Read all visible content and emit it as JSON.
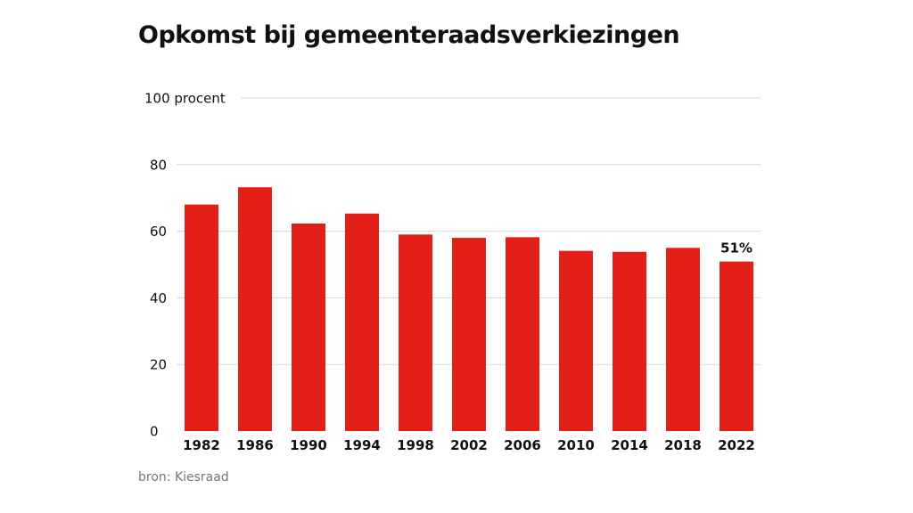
{
  "chart_data": {
    "type": "bar",
    "title": "Opkomst bij gemeenteraadsverkiezingen",
    "xlabel": "",
    "ylabel": "procent",
    "ylim": [
      0,
      100
    ],
    "yticks": [
      0,
      20,
      40,
      60,
      80,
      100
    ],
    "ytick_labels": [
      "0",
      "20",
      "40",
      "60",
      "80",
      "100 procent"
    ],
    "grid": true,
    "categories": [
      "1982",
      "1986",
      "1990",
      "1994",
      "1998",
      "2002",
      "2006",
      "2010",
      "2014",
      "2018",
      "2022"
    ],
    "values": [
      68.0,
      73.2,
      62.3,
      65.3,
      59.0,
      58.0,
      58.2,
      54.1,
      53.8,
      55.0,
      50.9
    ],
    "annotations": [
      {
        "category": "2022",
        "text": "51%"
      }
    ],
    "source": "bron: Kiesraad",
    "colors": {
      "bar": "#e31e16",
      "grid": "#d8d8d8",
      "text": "#111111"
    }
  }
}
